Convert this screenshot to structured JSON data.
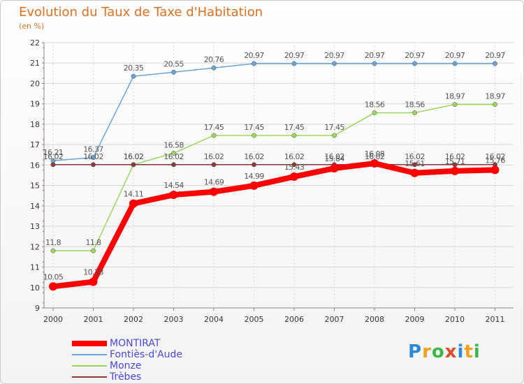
{
  "header": {
    "title": "Evolution du Taux de Taxe d'Habitation",
    "subtitle": "(en %)"
  },
  "logo": {
    "text": "Proxiti",
    "colors": [
      "#2a8ad6",
      "#f2a01c",
      "#3cb84a",
      "#e04a2a",
      "#2a8ad6",
      "#f2a01c",
      "#3cb84a"
    ]
  },
  "chart_data": {
    "type": "line",
    "x": [
      "2000",
      "2001",
      "2002",
      "2003",
      "2004",
      "2005",
      "2006",
      "2007",
      "2008",
      "2009",
      "2010",
      "2011"
    ],
    "ylim": [
      9,
      22
    ],
    "yticks": [
      9,
      10,
      11,
      12,
      13,
      14,
      15,
      16,
      17,
      18,
      19,
      20,
      21,
      22
    ],
    "grid": true,
    "legend": "bottom-left",
    "series": [
      {
        "name": "MONTIRAT",
        "color": "#ff0000",
        "values": [
          10.05,
          10.28,
          14.11,
          14.54,
          14.69,
          14.99,
          15.43,
          15.84,
          16.08,
          15.61,
          15.71,
          15.76
        ],
        "labels": [
          "10.05",
          "10.28",
          "14.11",
          "14.54",
          "14.69",
          "14.99",
          "15.43",
          "15.84",
          "16.08",
          "15.61",
          "15.71",
          "15.76"
        ]
      },
      {
        "name": "Fontiès-d'Aude",
        "color": "#6aa3d6",
        "values": [
          16.21,
          16.37,
          20.35,
          20.55,
          20.76,
          20.97,
          20.97,
          20.97,
          20.97,
          20.97,
          20.97,
          20.97
        ],
        "labels": [
          "16.21",
          "16.37",
          "20.35",
          "20.55",
          "20.76",
          "20.97",
          "20.97",
          "20.97",
          "20.97",
          "20.97",
          "20.97",
          "20.97"
        ]
      },
      {
        "name": "Monze",
        "color": "#9bd65c",
        "values": [
          11.8,
          11.8,
          16.02,
          16.58,
          17.45,
          17.45,
          17.45,
          17.45,
          18.56,
          18.56,
          18.97,
          18.97
        ],
        "labels": [
          "11.8",
          "11.8",
          "16.02",
          "16.58",
          "17.45",
          "17.45",
          "17.45",
          "17.45",
          "18.56",
          "18.56",
          "18.97",
          "18.97"
        ]
      },
      {
        "name": "Trèbes",
        "color": "#8b3a3a",
        "values": [
          16.02,
          16.02,
          16.02,
          16.02,
          16.02,
          16.02,
          16.02,
          16.02,
          16.02,
          16.02,
          16.02,
          16.02
        ],
        "labels": [
          "16.02",
          "16.02",
          "16.02",
          "16.02",
          "16.02",
          "16.02",
          "16.02",
          "16.02",
          "16.02",
          "16.02",
          "16.02",
          "16.02"
        ]
      }
    ]
  }
}
